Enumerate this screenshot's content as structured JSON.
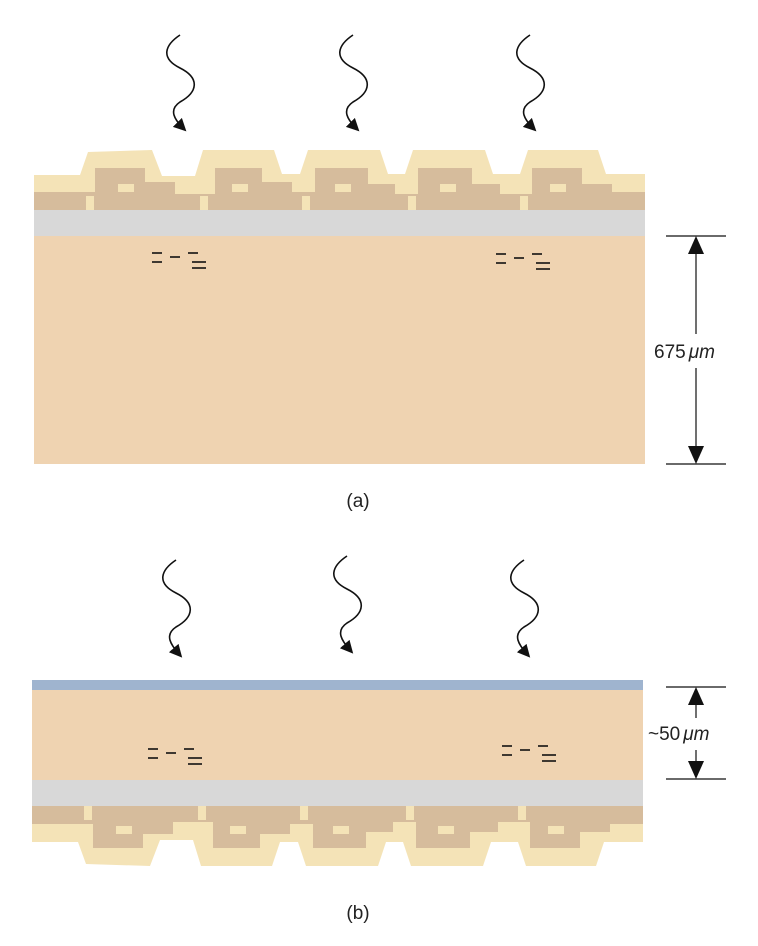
{
  "panel_a": {
    "caption": "(a)",
    "thickness_value": "675",
    "thickness_unit": "μm",
    "photon_count": 3,
    "carrier_groups": 2
  },
  "panel_b": {
    "caption": "(b)",
    "thickness_value": "~50",
    "thickness_unit": "μm",
    "photon_count": 3,
    "carrier_groups": 2
  },
  "colors": {
    "silicon": "#efd3b1",
    "oxide": "#d8d8d8",
    "metal_dark": "#d6bc9c",
    "dielectric_light": "#f4e3b7",
    "passivation": "#9fb4cf",
    "ink": "#111111"
  }
}
